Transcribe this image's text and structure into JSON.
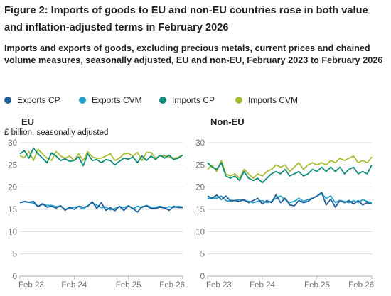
{
  "figure": {
    "title": "Figure 2: Imports of goods to EU and non-EU countries rose in both value and inflation-adjusted terms in February 2026",
    "subtitle": "Imports and exports of goods, excluding precious metals, current prices and chained volume measures, seasonally adjusted, EU and non-EU, February 2023 to February 2026"
  },
  "colors": {
    "exports_cp": "#206095",
    "exports_cvm": "#27A0CC",
    "imports_cp": "#118C7B",
    "imports_cvm": "#A8BD3A",
    "grid": "#dcdcdc",
    "axis": "#b0b0b0",
    "text": "#222222",
    "tick_text": "#707070"
  },
  "legend": [
    {
      "key": "exports_cp",
      "label": "Exports CP"
    },
    {
      "key": "exports_cvm",
      "label": "Exports CVM"
    },
    {
      "key": "imports_cp",
      "label": "Imports CP"
    },
    {
      "key": "imports_cvm",
      "label": "Imports CVM"
    }
  ],
  "chart_data": [
    {
      "type": "line",
      "title": "EU",
      "ylabel": "£ billion, seasonally adjusted",
      "ylim": [
        0,
        30
      ],
      "yticks": [
        0,
        5,
        10,
        15,
        20,
        25,
        30
      ],
      "x_tick_labels": [
        "Feb 23",
        "Feb 24",
        "Feb 25",
        "Feb 26"
      ],
      "x_tick_index": [
        0,
        12,
        24,
        36
      ],
      "grid": true,
      "x": [
        "2023-02",
        "2023-03",
        "2023-04",
        "2023-05",
        "2023-06",
        "2023-07",
        "2023-08",
        "2023-09",
        "2023-10",
        "2023-11",
        "2023-12",
        "2024-01",
        "2024-02",
        "2024-03",
        "2024-04",
        "2024-05",
        "2024-06",
        "2024-07",
        "2024-08",
        "2024-09",
        "2024-10",
        "2024-11",
        "2024-12",
        "2025-01",
        "2025-02",
        "2025-03",
        "2025-04",
        "2025-05",
        "2025-06",
        "2025-07",
        "2025-08",
        "2025-09",
        "2025-10",
        "2025-11",
        "2025-12",
        "2026-01",
        "2026-02"
      ],
      "series": [
        {
          "key": "imports_cvm",
          "name": "Imports CVM",
          "values": [
            27.0,
            26.7,
            28.0,
            26.0,
            28.5,
            27.5,
            26.5,
            26.0,
            28.0,
            27.0,
            26.5,
            27.0,
            26.0,
            27.5,
            26.0,
            28.0,
            26.8,
            26.5,
            26.5,
            27.0,
            27.5,
            26.0,
            26.5,
            27.5,
            27.6,
            27.0,
            27.8,
            26.0,
            27.8,
            27.8,
            26.5,
            27.0,
            27.0,
            26.8,
            26.5,
            26.7,
            27.2
          ]
        },
        {
          "key": "imports_cp",
          "name": "Imports CP",
          "values": [
            27.5,
            28.2,
            26.5,
            28.8,
            27.5,
            26.5,
            25.5,
            27.7,
            27.0,
            26.0,
            26.4,
            25.8,
            26.0,
            26.8,
            24.8,
            27.5,
            26.0,
            26.2,
            25.5,
            26.2,
            26.0,
            25.0,
            25.8,
            26.5,
            26.3,
            26.8,
            25.5,
            27.0,
            26.0,
            27.0,
            26.2,
            27.2,
            26.5,
            27.2,
            26.2,
            26.5,
            27.2
          ]
        },
        {
          "key": "exports_cvm",
          "name": "Exports CVM",
          "values": [
            16.5,
            16.7,
            16.6,
            16.4,
            15.7,
            16.1,
            15.9,
            15.9,
            15.6,
            15.8,
            15.0,
            15.3,
            15.5,
            15.6,
            15.1,
            15.8,
            16.5,
            15.9,
            15.4,
            15.5,
            14.9,
            15.2,
            15.6,
            15.4,
            15.8,
            15.1,
            15.7,
            15.4,
            15.9,
            15.5,
            15.5,
            15.7,
            15.3,
            15.6,
            15.4,
            15.7,
            15.5
          ]
        },
        {
          "key": "exports_cp",
          "name": "Exports CP",
          "values": [
            16.5,
            16.8,
            16.6,
            16.8,
            15.6,
            16.3,
            15.5,
            15.7,
            15.3,
            15.8,
            14.8,
            15.5,
            15.0,
            15.7,
            15.5,
            15.7,
            16.7,
            15.2,
            16.5,
            14.8,
            15.4,
            14.7,
            15.7,
            14.8,
            15.8,
            15.2,
            14.4,
            15.6,
            15.8,
            15.2,
            15.2,
            15.5,
            15.3,
            14.8,
            15.7,
            15.4,
            15.4
          ]
        }
      ]
    },
    {
      "type": "line",
      "title": "Non-EU",
      "ylim": [
        0,
        30
      ],
      "yticks": [
        0,
        5,
        10,
        15,
        20,
        25,
        30
      ],
      "x_tick_labels": [
        "Feb 23",
        "Feb 24",
        "Feb 25",
        "Feb 26"
      ],
      "x_tick_index": [
        0,
        12,
        24,
        36
      ],
      "grid": true,
      "x": [
        "2023-02",
        "2023-03",
        "2023-04",
        "2023-05",
        "2023-06",
        "2023-07",
        "2023-08",
        "2023-09",
        "2023-10",
        "2023-11",
        "2023-12",
        "2024-01",
        "2024-02",
        "2024-03",
        "2024-04",
        "2024-05",
        "2024-06",
        "2024-07",
        "2024-08",
        "2024-09",
        "2024-10",
        "2024-11",
        "2024-12",
        "2025-01",
        "2025-02",
        "2025-03",
        "2025-04",
        "2025-05",
        "2025-06",
        "2025-07",
        "2025-08",
        "2025-09",
        "2025-10",
        "2025-11",
        "2025-12",
        "2026-01",
        "2026-02"
      ],
      "series": [
        {
          "key": "imports_cvm",
          "name": "Imports CVM",
          "values": [
            24.0,
            25.0,
            23.5,
            26.0,
            23.0,
            22.5,
            23.0,
            22.0,
            24.0,
            23.0,
            22.0,
            23.0,
            22.5,
            23.5,
            24.0,
            25.0,
            24.5,
            25.0,
            23.5,
            24.5,
            25.5,
            24.0,
            25.0,
            25.5,
            25.0,
            25.5,
            25.0,
            26.0,
            25.5,
            26.5,
            26.0,
            26.5,
            27.0,
            25.5,
            26.0,
            25.5,
            26.8
          ]
        },
        {
          "key": "imports_cp",
          "name": "Imports CP",
          "values": [
            25.5,
            24.5,
            24.0,
            25.5,
            22.5,
            22.0,
            22.5,
            21.5,
            23.5,
            22.0,
            21.5,
            22.0,
            21.0,
            22.0,
            23.0,
            23.5,
            23.0,
            24.0,
            22.5,
            23.0,
            23.5,
            22.5,
            23.0,
            24.0,
            23.5,
            24.5,
            23.5,
            24.5,
            23.5,
            24.5,
            23.0,
            24.0,
            24.5,
            23.0,
            23.5,
            23.0,
            25.0
          ]
        },
        {
          "key": "exports_cvm",
          "name": "Exports CVM",
          "values": [
            17.5,
            17.5,
            17.5,
            18.0,
            17.0,
            16.8,
            17.0,
            17.2,
            17.0,
            16.8,
            16.5,
            16.8,
            17.0,
            16.5,
            16.8,
            17.5,
            18.0,
            17.2,
            16.5,
            16.8,
            17.5,
            16.8,
            17.2,
            17.5,
            18.0,
            18.5,
            17.5,
            18.0,
            16.5,
            17.0,
            16.8,
            16.5,
            17.0,
            16.5,
            17.2,
            16.8,
            16.5
          ]
        },
        {
          "key": "exports_cp",
          "name": "Exports CP",
          "values": [
            18.0,
            17.5,
            18.2,
            17.2,
            18.0,
            17.0,
            17.0,
            16.8,
            17.2,
            16.5,
            17.0,
            17.5,
            16.2,
            17.0,
            16.5,
            18.3,
            16.5,
            17.5,
            16.0,
            15.8,
            17.0,
            16.5,
            16.8,
            17.5,
            18.0,
            18.8,
            16.0,
            17.3,
            15.5,
            17.0,
            16.5,
            17.0,
            16.2,
            17.0,
            16.0,
            16.5,
            16.2
          ]
        }
      ]
    }
  ]
}
